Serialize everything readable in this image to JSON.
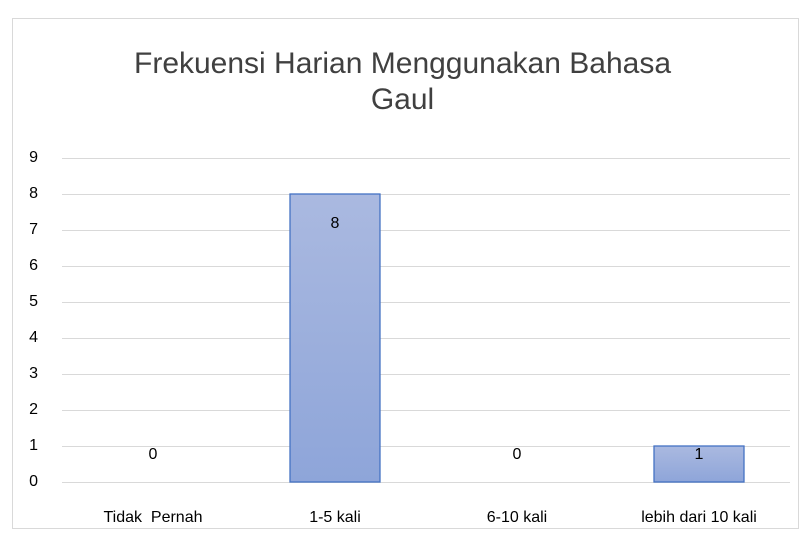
{
  "chart_data": {
    "type": "bar",
    "title": "Frekuensi Harian Menggunakan Bahasa Gaul",
    "categories": [
      "Tidak  Pernah",
      "1-5 kali",
      "6-10 kali",
      "lebih dari 10 kali"
    ],
    "values": [
      0,
      8,
      0,
      1
    ],
    "color": "#4472c4",
    "ylim": [
      0,
      9
    ],
    "yticks": [
      0,
      1,
      2,
      3,
      4,
      5,
      6,
      7,
      8,
      9
    ],
    "grid": true
  }
}
